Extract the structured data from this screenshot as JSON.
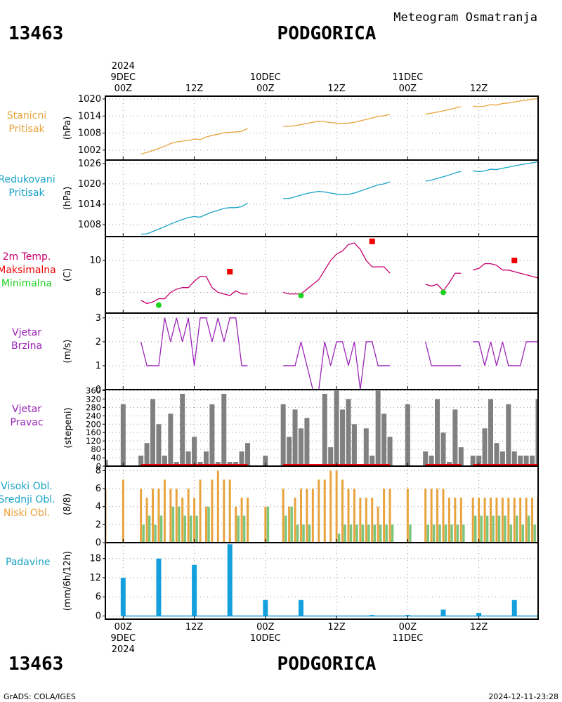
{
  "header": {
    "station_id": "13463",
    "station_name": "PODGORICA",
    "product": "Meteogram Osmatranja",
    "footer_left": "GrADS: COLA/IGES",
    "footer_right": "2024-12-11-23:28"
  },
  "time_axis": {
    "top_labels": [
      {
        "hour": 0,
        "lines": [
          "2024",
          "9DEC",
          "00Z"
        ]
      },
      {
        "hour": 12,
        "lines": [
          "12Z"
        ]
      },
      {
        "hour": 24,
        "lines": [
          "10DEC",
          "00Z"
        ]
      },
      {
        "hour": 36,
        "lines": [
          "12Z"
        ]
      },
      {
        "hour": 48,
        "lines": [
          "11DEC",
          "00Z"
        ]
      },
      {
        "hour": 60,
        "lines": [
          "12Z"
        ]
      }
    ],
    "bottom_labels": [
      {
        "hour": 0,
        "lines": [
          "00Z",
          "9DEC",
          "2024"
        ]
      },
      {
        "hour": 12,
        "lines": [
          "12Z"
        ]
      },
      {
        "hour": 24,
        "lines": [
          "00Z",
          "10DEC"
        ]
      },
      {
        "hour": 36,
        "lines": [
          "12Z"
        ]
      },
      {
        "hour": 48,
        "lines": [
          "00Z",
          "11DEC"
        ]
      },
      {
        "hour": 60,
        "lines": [
          "12Z"
        ]
      }
    ],
    "x_range": [
      -3,
      70
    ]
  },
  "colors": {
    "orange": "#e8a33d",
    "cyan": "#19a3c8",
    "magenta": "#c8006e",
    "red": "#f00000",
    "green": "#20d020",
    "purple": "#9b25b7",
    "gray": "#808080",
    "blue": "#14a0dc",
    "bar_orange": "#e8a33d",
    "bar_green": "#7cc57c",
    "grid": "#999999"
  },
  "panels": {
    "station_pressure": {
      "side_label": [
        "Stanicni",
        "Pritisak"
      ],
      "side_color": "orange",
      "ylabel": "(hPa)",
      "ticks": [
        "1002",
        "1008",
        "1014",
        "1020"
      ]
    },
    "reduced_pressure": {
      "side_label": [
        "Redukovani",
        "Pritisak"
      ],
      "side_color": "cyan",
      "ylabel": "(hPa)",
      "ticks": [
        "1008",
        "1014",
        "1020",
        "1026"
      ]
    },
    "temperature": {
      "side_label": [
        "2m Temp.",
        "Maksimalna",
        "Minimalna"
      ],
      "side_colors": [
        "magenta",
        "red",
        "green"
      ],
      "ylabel": "(C)",
      "ticks": [
        "8",
        "10"
      ]
    },
    "wind_speed": {
      "side_label": [
        "Vjetar",
        "Brzina"
      ],
      "side_color": "purple",
      "ylabel": "(m/s)",
      "ticks": [
        "0",
        "1",
        "2",
        "3"
      ]
    },
    "wind_direction": {
      "side_label": [
        "Vjetar",
        "Pravac"
      ],
      "side_color": "purple",
      "ylabel": "(stepeni)",
      "ticks": [
        "0",
        "40",
        "80",
        "120",
        "160",
        "200",
        "240",
        "280",
        "320",
        "360"
      ]
    },
    "cloud": {
      "side_label": [
        "Visoki Obl.",
        "Srednji Obl.",
        "Niski Obl."
      ],
      "side_colors": [
        "cyan",
        "cyan",
        "orange"
      ],
      "ylabel": "(8/8)",
      "ticks": [
        "0",
        "2",
        "4",
        "6",
        "8"
      ]
    },
    "precip": {
      "side_label": [
        "Padavine"
      ],
      "side_color": "cyan",
      "ylabel": "(mm/6h/12h)",
      "ticks": [
        "0",
        "6",
        "12",
        "18"
      ]
    }
  },
  "chart_data": [
    {
      "type": "line",
      "title": "Stanicni Pritisak",
      "ylabel": "(hPa)",
      "ylim": [
        998.5,
        1021
      ],
      "segments": [
        {
          "x": [
            3,
            4,
            5,
            6,
            7,
            8,
            9,
            10,
            11,
            12,
            13,
            14,
            15,
            16,
            17,
            18,
            19,
            20,
            21
          ],
          "y": [
            1000.6,
            1001.2,
            1001.8,
            1002.6,
            1003.4,
            1004.3,
            1004.9,
            1005.2,
            1005.4,
            1005.9,
            1005.7,
            1006.6,
            1007.2,
            1007.6,
            1008.1,
            1008.3,
            1008.4,
            1008.6,
            1009.6
          ]
        },
        {
          "x": [
            27,
            28,
            29,
            30,
            31,
            32,
            33,
            34,
            35,
            36,
            37,
            38,
            39,
            40,
            41,
            42,
            43,
            44,
            45
          ],
          "y": [
            1010.3,
            1010.4,
            1010.6,
            1011.0,
            1011.4,
            1011.8,
            1012.2,
            1012.0,
            1011.7,
            1011.5,
            1011.4,
            1011.5,
            1011.8,
            1012.3,
            1012.8,
            1013.3,
            1013.9,
            1014.1,
            1014.6
          ]
        },
        {
          "x": [
            51,
            52,
            53,
            54,
            55,
            56,
            57
          ],
          "y": [
            1014.7,
            1015.0,
            1015.4,
            1015.8,
            1016.3,
            1016.8,
            1017.3
          ]
        },
        {
          "x": [
            59,
            60,
            61,
            62,
            63,
            64,
            65,
            66,
            67,
            68,
            69,
            70
          ],
          "y": [
            1017.5,
            1017.3,
            1017.5,
            1018.0,
            1017.9,
            1018.4,
            1018.6,
            1019.0,
            1019.3,
            1019.6,
            1019.9,
            1020.2
          ]
        }
      ]
    },
    {
      "type": "line",
      "title": "Redukovani Pritisak",
      "ylabel": "(hPa)",
      "ylim": [
        1004.5,
        1027
      ],
      "segments": [
        {
          "x": [
            3,
            4,
            5,
            6,
            7,
            8,
            9,
            10,
            11,
            12,
            13,
            14,
            15,
            16,
            17,
            18,
            19,
            20,
            21
          ],
          "y": [
            1005.2,
            1005.3,
            1006.0,
            1006.7,
            1007.4,
            1008.2,
            1008.9,
            1009.5,
            1010.1,
            1010.4,
            1010.2,
            1011.0,
            1011.7,
            1012.2,
            1012.8,
            1013.0,
            1013.0,
            1013.3,
            1014.4
          ]
        },
        {
          "x": [
            27,
            28,
            29,
            30,
            31,
            32,
            33,
            34,
            35,
            36,
            37,
            38,
            39,
            40,
            41,
            42,
            43,
            44,
            45
          ],
          "y": [
            1015.7,
            1015.7,
            1016.2,
            1016.7,
            1017.2,
            1017.5,
            1017.8,
            1017.6,
            1017.3,
            1017.0,
            1016.8,
            1016.9,
            1017.3,
            1017.9,
            1018.5,
            1019.1,
            1019.7,
            1020.0,
            1020.6
          ]
        },
        {
          "x": [
            51,
            52,
            53,
            54,
            55,
            56,
            57
          ],
          "y": [
            1020.8,
            1021.1,
            1021.6,
            1022.1,
            1022.6,
            1023.2,
            1023.7
          ]
        },
        {
          "x": [
            59,
            60,
            61,
            62,
            63,
            64,
            65,
            66,
            67,
            68,
            69,
            70
          ],
          "y": [
            1023.8,
            1023.6,
            1023.8,
            1024.3,
            1024.2,
            1024.6,
            1024.9,
            1025.3,
            1025.6,
            1025.9,
            1026.2,
            1026.5
          ]
        }
      ]
    },
    {
      "type": "line",
      "title": "2m Temp.",
      "ylabel": "(C)",
      "ylim": [
        6.7,
        11.5
      ],
      "segments": [
        {
          "x": [
            3,
            4,
            5,
            6,
            7,
            8,
            9,
            10,
            11,
            12,
            13,
            14,
            15,
            16,
            17,
            18,
            19,
            20,
            21
          ],
          "y": [
            7.5,
            7.3,
            7.4,
            7.6,
            7.6,
            8.0,
            8.2,
            8.3,
            8.3,
            8.7,
            9.0,
            9.0,
            8.3,
            8.0,
            7.9,
            7.8,
            8.1,
            7.9,
            7.9
          ]
        },
        {
          "x": [
            27,
            28,
            29,
            30,
            31,
            32,
            33,
            34,
            35,
            36,
            37,
            38,
            39,
            40,
            41,
            42,
            43,
            44,
            45
          ],
          "y": [
            8.0,
            7.9,
            7.9,
            7.9,
            8.2,
            8.5,
            8.8,
            9.4,
            10.0,
            10.4,
            10.6,
            11.0,
            11.1,
            10.7,
            10.0,
            9.6,
            9.6,
            9.6,
            9.2
          ]
        },
        {
          "x": [
            51,
            52,
            53,
            54,
            55,
            56,
            57
          ],
          "y": [
            8.5,
            8.4,
            8.5,
            8.1,
            8.6,
            9.2,
            9.2
          ]
        },
        {
          "x": [
            59,
            60,
            61,
            62,
            63,
            64,
            65,
            66,
            67,
            68,
            69,
            70
          ],
          "y": [
            9.4,
            9.5,
            9.8,
            9.8,
            9.7,
            9.4,
            9.4,
            9.3,
            9.2,
            9.1,
            9.0,
            8.9
          ]
        }
      ],
      "maxima": {
        "x": [
          18,
          42,
          66
        ],
        "y": [
          9.3,
          11.2,
          10.0
        ]
      },
      "minima": {
        "x": [
          6,
          30,
          54
        ],
        "y": [
          7.2,
          7.8,
          8.0
        ]
      }
    },
    {
      "type": "line",
      "title": "Vjetar Brzina",
      "ylabel": "(m/s)",
      "ylim": [
        0,
        3.2
      ],
      "segments": [
        {
          "x": [
            3,
            4,
            5,
            6,
            7,
            8,
            9,
            10,
            11,
            12,
            13,
            14,
            15,
            16,
            17,
            18,
            19,
            20,
            21
          ],
          "y": [
            2,
            1,
            1,
            1,
            3,
            2,
            3,
            2,
            3,
            1,
            3,
            3,
            2,
            3,
            2,
            3,
            3,
            1,
            1
          ]
        },
        {
          "x": [
            27,
            28,
            29,
            30,
            31,
            32,
            33,
            34,
            35,
            36,
            37,
            38,
            39,
            40,
            41,
            42,
            43,
            44,
            45
          ],
          "y": [
            1,
            1,
            1,
            2,
            1,
            0,
            0,
            2,
            1,
            2,
            2,
            1,
            2,
            0,
            2,
            2,
            1,
            1,
            1
          ]
        },
        {
          "x": [
            51,
            52,
            53,
            54,
            55,
            56,
            57
          ],
          "y": [
            2,
            1,
            1,
            1,
            1,
            1,
            1
          ]
        },
        {
          "x": [
            59,
            60,
            61,
            62,
            63,
            64,
            65,
            66,
            67,
            68,
            69,
            70
          ],
          "y": [
            2,
            2,
            1,
            2,
            1,
            2,
            1,
            1,
            1,
            2,
            2,
            2
          ]
        }
      ]
    },
    {
      "type": "bar",
      "title": "Vjetar Pravac",
      "ylabel": "(stepeni)",
      "ylim": [
        0,
        365
      ],
      "x": [
        -3,
        0,
        3,
        4,
        5,
        6,
        7,
        8,
        9,
        10,
        11,
        12,
        13,
        14,
        15,
        16,
        17,
        18,
        19,
        20,
        21,
        24,
        27,
        28,
        29,
        30,
        31,
        32,
        33,
        34,
        35,
        36,
        37,
        38,
        39,
        40,
        41,
        42,
        43,
        44,
        45,
        48,
        51,
        52,
        53,
        54,
        55,
        56,
        57,
        59,
        60,
        61,
        62,
        63,
        64,
        65,
        66,
        67,
        68,
        69,
        70
      ],
      "values": [
        30,
        295,
        50,
        110,
        320,
        200,
        50,
        250,
        20,
        345,
        70,
        140,
        20,
        70,
        295,
        20,
        345,
        20,
        20,
        70,
        110,
        50,
        295,
        140,
        270,
        180,
        230,
        0,
        0,
        345,
        90,
        360,
        270,
        320,
        200,
        0,
        180,
        50,
        360,
        250,
        140,
        295,
        70,
        50,
        320,
        160,
        20,
        270,
        90,
        50,
        50,
        180,
        320,
        110,
        70,
        295,
        70,
        50,
        50,
        50,
        320
      ]
    },
    {
      "type": "bar",
      "title": "Visoki Obl. / Srednji Obl. / Niski Obl.",
      "ylabel": "(8/8)",
      "ylim": [
        0,
        8.5
      ],
      "x": [
        -3,
        0,
        3,
        4,
        5,
        6,
        7,
        8,
        9,
        10,
        11,
        12,
        13,
        14,
        15,
        16,
        17,
        18,
        19,
        20,
        21,
        24,
        27,
        28,
        29,
        30,
        31,
        32,
        33,
        34,
        35,
        36,
        37,
        38,
        39,
        40,
        41,
        42,
        43,
        44,
        45,
        48,
        51,
        52,
        53,
        54,
        55,
        56,
        57,
        59,
        60,
        61,
        62,
        63,
        64,
        65,
        66,
        67,
        68,
        69,
        70
      ],
      "series": [
        {
          "name": "Niski Obl.",
          "values": [
            6,
            7,
            6,
            5,
            6,
            6,
            7,
            6,
            6,
            5,
            6,
            5,
            7,
            4,
            7,
            8,
            7,
            7,
            4,
            5,
            5,
            4,
            6,
            4,
            5,
            6,
            6,
            6,
            7,
            7,
            8,
            8,
            7,
            6,
            6,
            5,
            5,
            5,
            4,
            6,
            6,
            6,
            6,
            6,
            6,
            6,
            5,
            5,
            5,
            5,
            5,
            5,
            5,
            5,
            5,
            5,
            5,
            5,
            5,
            5,
            5
          ]
        },
        {
          "name": "Srednji Obl.",
          "values": [
            0,
            0,
            2,
            3,
            2,
            3,
            0,
            4,
            4,
            3,
            3,
            3,
            0,
            4,
            0,
            0,
            0,
            0,
            3,
            3,
            0,
            4,
            3,
            4,
            2,
            2,
            2,
            0,
            0,
            0,
            0,
            1,
            2,
            2,
            2,
            2,
            2,
            2,
            2,
            2,
            2,
            2,
            2,
            2,
            2,
            2,
            2,
            2,
            2,
            3,
            3,
            3,
            3,
            3,
            3,
            2,
            3,
            2,
            3,
            2,
            3
          ]
        }
      ]
    },
    {
      "type": "bar",
      "title": "Padavine",
      "ylabel": "(mm/6h/12h)",
      "ylim": [
        -1,
        23
      ],
      "x": [
        0,
        6,
        12,
        18,
        24,
        30,
        42,
        48,
        54,
        60,
        66
      ],
      "values": [
        12,
        18,
        16,
        22.5,
        5,
        5,
        0.3,
        0.3,
        2,
        1,
        5
      ]
    }
  ]
}
